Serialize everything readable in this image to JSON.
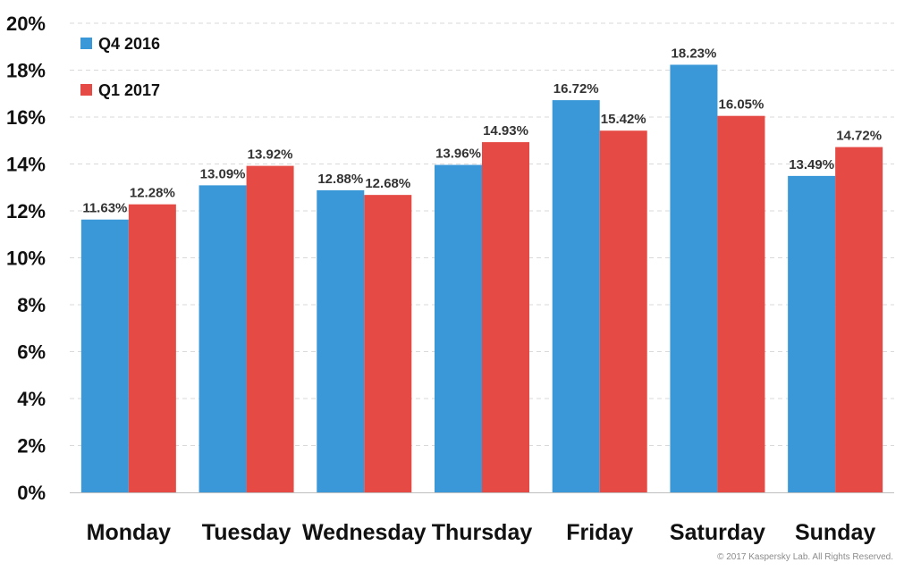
{
  "chart_data": {
    "type": "bar",
    "categories": [
      "Monday",
      "Tuesday",
      "Wednesday",
      "Thursday",
      "Friday",
      "Saturday",
      "Sunday"
    ],
    "series": [
      {
        "name": "Q4 2016",
        "color": "#3a98d8",
        "values": [
          11.63,
          13.09,
          12.88,
          13.96,
          16.72,
          18.23,
          13.49
        ],
        "labels": [
          "11.63%",
          "13.09%",
          "12.88%",
          "13.96%",
          "16.72%",
          "18.23%",
          "13.49%"
        ]
      },
      {
        "name": "Q1 2017",
        "color": "#e54b44",
        "values": [
          12.28,
          13.92,
          12.68,
          14.93,
          15.42,
          16.05,
          14.72
        ],
        "labels": [
          "12.28%",
          "13.92%",
          "12.68%",
          "14.93%",
          "15.42%",
          "16.05%",
          "14.72%"
        ]
      }
    ],
    "y_ticks": [
      "0%",
      "2%",
      "4%",
      "6%",
      "8%",
      "10%",
      "12%",
      "14%",
      "16%",
      "18%",
      "20%"
    ],
    "ylim": [
      0,
      20
    ],
    "grid": true,
    "legend_position": "top-left"
  },
  "copyright": "© 2017 Kaspersky Lab. All Rights Reserved."
}
